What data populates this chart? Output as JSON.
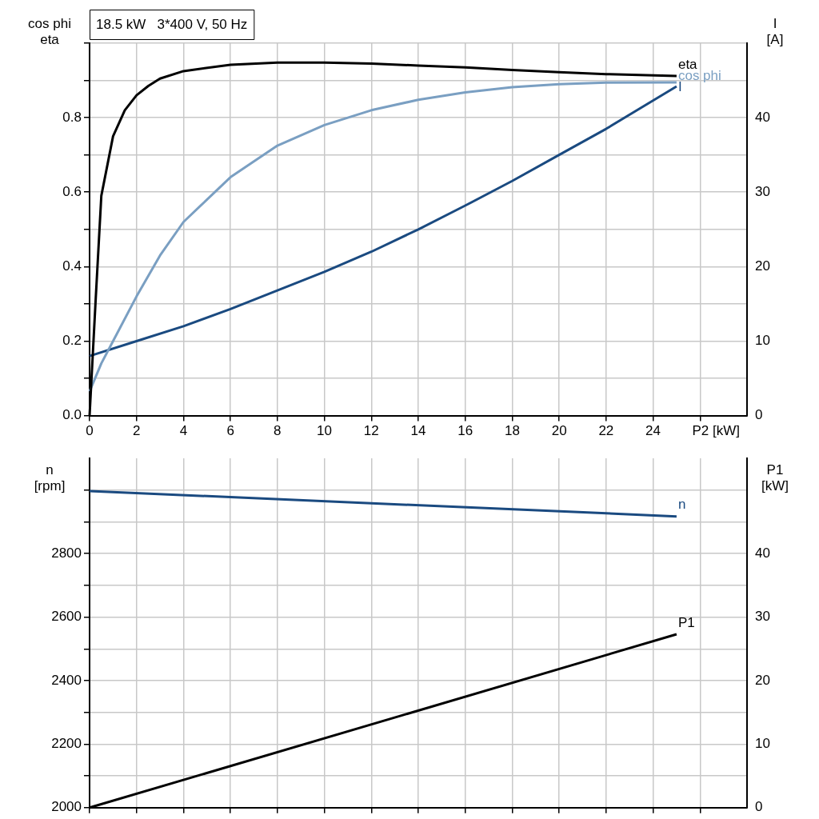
{
  "chart_data": [
    {
      "type": "line",
      "title": "18.5 kW   3*400 V, 50 Hz",
      "xlabel": "P2 [kW]",
      "ylabel": "cos phi\neta",
      "y2label": "I\n[A]",
      "grid": true,
      "legend": false,
      "marker": "none",
      "xlim": [
        0,
        28
      ],
      "xticks": [
        {
          "value": 0,
          "label": "0"
        },
        2,
        4,
        6,
        8,
        10,
        12,
        14,
        16,
        18,
        20,
        22,
        24,
        {
          "value": 26,
          "label": null
        }
      ],
      "ylim": [
        0,
        1
      ],
      "yticks": [
        {
          "value": 0,
          "label": "0.0"
        },
        {
          "value": 0.1,
          "label": null
        },
        0.2,
        {
          "value": 0.3,
          "label": null
        },
        0.4,
        {
          "value": 0.5,
          "label": null
        },
        0.6,
        {
          "value": 0.7,
          "label": null
        },
        0.8,
        {
          "value": 0.9,
          "label": null
        },
        {
          "value": 1,
          "label": null
        }
      ],
      "y2lim": [
        0,
        50
      ],
      "y2ticks": [
        0,
        10,
        20,
        30,
        40,
        {
          "value": 50,
          "label": null
        }
      ],
      "series": [
        {
          "name": "eta",
          "color": "#000000",
          "x": [
            0,
            0.25,
            0.5,
            1,
            1.5,
            2,
            2.5,
            3,
            4,
            6,
            8,
            10,
            12,
            14,
            16,
            18,
            20,
            22,
            25
          ],
          "values": [
            0,
            0.3,
            0.59,
            0.75,
            0.82,
            0.86,
            0.885,
            0.905,
            0.925,
            0.942,
            0.948,
            0.948,
            0.945,
            0.94,
            0.935,
            0.928,
            0.922,
            0.917,
            0.912
          ]
        },
        {
          "name": "cos phi",
          "color": "#7a9fc2",
          "x": [
            0,
            0.5,
            1,
            2,
            3,
            4,
            6,
            8,
            10,
            12,
            14,
            16,
            18,
            20,
            22,
            25
          ],
          "values": [
            0.065,
            0.14,
            0.2,
            0.32,
            0.43,
            0.52,
            0.64,
            0.725,
            0.78,
            0.82,
            0.848,
            0.868,
            0.882,
            0.89,
            0.894,
            0.895
          ]
        },
        {
          "name": "I",
          "color": "#1a4a80",
          "axis": "y2",
          "x": [
            0,
            2,
            4,
            6,
            8,
            10,
            12,
            14,
            16,
            18,
            20,
            22,
            25
          ],
          "values": [
            8,
            10,
            12,
            14.3,
            16.8,
            19.3,
            22,
            25,
            28.2,
            31.5,
            35,
            38.5,
            44.2
          ]
        }
      ]
    },
    {
      "type": "line",
      "ylabel": "n\n[rpm]",
      "y2label": "P1\n[kW]",
      "grid": true,
      "legend": false,
      "marker": "none",
      "tick_labels": "y",
      "xlim": [
        0,
        28
      ],
      "xticks": [
        {
          "value": 0,
          "label": null
        },
        {
          "value": 2,
          "label": null
        },
        {
          "value": 4,
          "label": null
        },
        {
          "value": 6,
          "label": null
        },
        {
          "value": 8,
          "label": null
        },
        {
          "value": 10,
          "label": null
        },
        {
          "value": 12,
          "label": null
        },
        {
          "value": 14,
          "label": null
        },
        {
          "value": 16,
          "label": null
        },
        {
          "value": 18,
          "label": null
        },
        {
          "value": 20,
          "label": null
        },
        {
          "value": 22,
          "label": null
        },
        {
          "value": 24,
          "label": null
        },
        {
          "value": 26,
          "label": null
        }
      ],
      "ylim": [
        2000,
        3100
      ],
      "yticks": [
        2000,
        {
          "value": 2100,
          "label": null
        },
        2200,
        {
          "value": 2300,
          "label": null
        },
        2400,
        {
          "value": 2500,
          "label": null
        },
        2600,
        {
          "value": 2700,
          "label": null
        },
        2800,
        {
          "value": 2900,
          "label": null
        },
        {
          "value": 3000,
          "label": null
        }
      ],
      "y2lim": [
        0,
        55
      ],
      "y2ticks": [
        0,
        10,
        20,
        30,
        40,
        {
          "value": 50,
          "label": null
        }
      ],
      "series": [
        {
          "name": "n",
          "color": "#1a4a80",
          "x": [
            0,
            25
          ],
          "values": [
            2997,
            2917
          ]
        },
        {
          "name": "P1",
          "color": "#000000",
          "axis": "y2",
          "x": [
            0,
            25
          ],
          "values": [
            0,
            27.3
          ]
        }
      ]
    }
  ]
}
